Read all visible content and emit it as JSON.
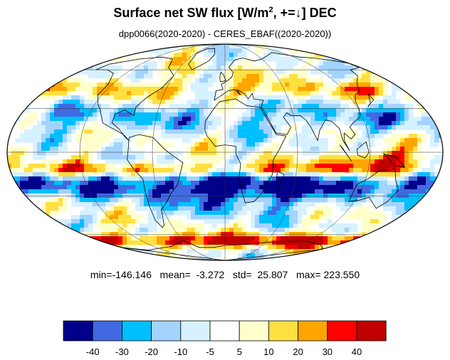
{
  "title": {
    "prefix": "Surface net SW flux [W/m",
    "exponent": "2",
    "suffix": ", +=↓]  DEC"
  },
  "subtitle": "dpp0066(2020-2020) - CERES_EBAF((2020-2020))",
  "stats_text": "min=-146.146   mean=  -3.272   std=  25.807   max= 223.550",
  "legend": {
    "colors": [
      "#00008b",
      "#4169e1",
      "#00bfff",
      "#a3d3ff",
      "#d6f1ff",
      "#ffffff",
      "#ffffcc",
      "#ffe040",
      "#ffa500",
      "#ff0000",
      "#c00000"
    ],
    "tick_labels": [
      "-40",
      "-30",
      "-20",
      "-10",
      "-5",
      "5",
      "10",
      "20",
      "30",
      "40"
    ]
  },
  "map": {
    "projection": "mollweide",
    "grid": true,
    "coastlines": true
  }
}
